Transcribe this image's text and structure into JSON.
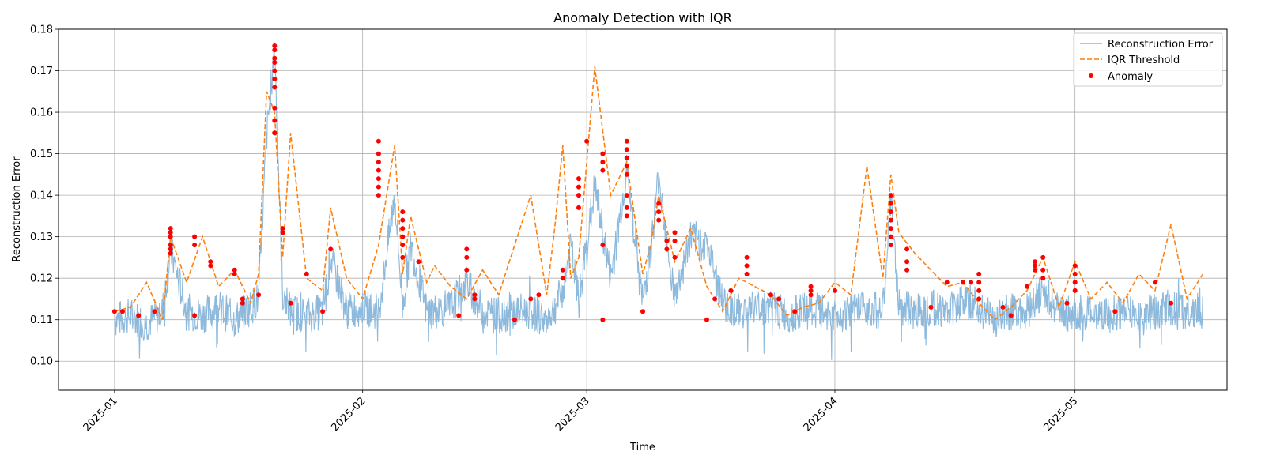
{
  "chart_data": {
    "type": "line",
    "title": "Anomaly Detection with IQR",
    "xlabel": "Time",
    "ylabel": "Reconstruction Error",
    "x_range": [
      "2024-12-25",
      "2025-05-20"
    ],
    "ylim": [
      0.093,
      0.18
    ],
    "yticks": [
      "0.10",
      "0.11",
      "0.12",
      "0.13",
      "0.14",
      "0.15",
      "0.16",
      "0.17",
      "0.18"
    ],
    "xticks": [
      {
        "date": "2025-01-01",
        "label": "2025-01"
      },
      {
        "date": "2025-02-01",
        "label": "2025-02"
      },
      {
        "date": "2025-03-01",
        "label": "2025-03"
      },
      {
        "date": "2025-04-01",
        "label": "2025-04"
      },
      {
        "date": "2025-05-01",
        "label": "2025-05"
      }
    ],
    "grid": true,
    "legend_position": "top-right",
    "series": [
      {
        "name": "Reconstruction Error",
        "style": "solid",
        "color": "#8cb9dc",
        "x": [
          "2025-01-01",
          "2025-01-03",
          "2025-01-05",
          "2025-01-07",
          "2025-01-08",
          "2025-01-10",
          "2025-01-12",
          "2025-01-14",
          "2025-01-16",
          "2025-01-18",
          "2025-01-19",
          "2025-01-20",
          "2025-01-21",
          "2025-01-22",
          "2025-01-23",
          "2025-01-25",
          "2025-01-27",
          "2025-01-28",
          "2025-01-30",
          "2025-02-01",
          "2025-02-03",
          "2025-02-05",
          "2025-02-06",
          "2025-02-07",
          "2025-02-09",
          "2025-02-10",
          "2025-02-12",
          "2025-02-14",
          "2025-02-16",
          "2025-02-18",
          "2025-02-20",
          "2025-02-22",
          "2025-02-24",
          "2025-02-25",
          "2025-02-26",
          "2025-02-27",
          "2025-02-28",
          "2025-03-02",
          "2025-03-04",
          "2025-03-06",
          "2025-03-08",
          "2025-03-09",
          "2025-03-10",
          "2025-03-12",
          "2025-03-14",
          "2025-03-16",
          "2025-03-18",
          "2025-03-20",
          "2025-03-22",
          "2025-03-24",
          "2025-03-26",
          "2025-03-28",
          "2025-03-30",
          "2025-04-01",
          "2025-04-03",
          "2025-04-05",
          "2025-04-07",
          "2025-04-08",
          "2025-04-09",
          "2025-04-11",
          "2025-04-13",
          "2025-04-15",
          "2025-04-17",
          "2025-04-19",
          "2025-04-21",
          "2025-04-23",
          "2025-04-25",
          "2025-04-27",
          "2025-04-29",
          "2025-05-01",
          "2025-05-03",
          "2025-05-05",
          "2025-05-07",
          "2025-05-09",
          "2025-05-11",
          "2025-05-13",
          "2025-05-15",
          "2025-05-17"
        ],
        "y": [
          0.11,
          0.111,
          0.109,
          0.112,
          0.127,
          0.112,
          0.111,
          0.113,
          0.11,
          0.113,
          0.115,
          0.154,
          0.176,
          0.116,
          0.112,
          0.111,
          0.112,
          0.125,
          0.112,
          0.113,
          0.112,
          0.14,
          0.113,
          0.128,
          0.112,
          0.112,
          0.113,
          0.119,
          0.112,
          0.111,
          0.112,
          0.112,
          0.11,
          0.113,
          0.117,
          0.128,
          0.114,
          0.142,
          0.12,
          0.146,
          0.114,
          0.127,
          0.145,
          0.115,
          0.13,
          0.128,
          0.114,
          0.112,
          0.113,
          0.113,
          0.111,
          0.112,
          0.112,
          0.111,
          0.112,
          0.113,
          0.112,
          0.139,
          0.113,
          0.112,
          0.113,
          0.112,
          0.115,
          0.113,
          0.11,
          0.112,
          0.112,
          0.117,
          0.112,
          0.111,
          0.112,
          0.111,
          0.112,
          0.111,
          0.112,
          0.113,
          0.112,
          0.112
        ]
      },
      {
        "name": "IQR Threshold",
        "style": "dashed",
        "color": "#ff7f0e",
        "x": [
          "2025-01-01",
          "2025-01-03",
          "2025-01-05",
          "2025-01-07",
          "2025-01-08",
          "2025-01-10",
          "2025-01-12",
          "2025-01-14",
          "2025-01-16",
          "2025-01-18",
          "2025-01-19",
          "2025-01-20",
          "2025-01-21",
          "2025-01-22",
          "2025-01-23",
          "2025-01-25",
          "2025-01-27",
          "2025-01-28",
          "2025-01-30",
          "2025-02-01",
          "2025-02-03",
          "2025-02-05",
          "2025-02-06",
          "2025-02-07",
          "2025-02-09",
          "2025-02-10",
          "2025-02-12",
          "2025-02-14",
          "2025-02-16",
          "2025-02-18",
          "2025-02-20",
          "2025-02-22",
          "2025-02-24",
          "2025-02-25",
          "2025-02-26",
          "2025-02-27",
          "2025-02-28",
          "2025-03-02",
          "2025-03-04",
          "2025-03-06",
          "2025-03-08",
          "2025-03-09",
          "2025-03-10",
          "2025-03-12",
          "2025-03-14",
          "2025-03-16",
          "2025-03-18",
          "2025-03-20",
          "2025-03-22",
          "2025-03-24",
          "2025-03-26",
          "2025-03-28",
          "2025-03-30",
          "2025-04-01",
          "2025-04-03",
          "2025-04-05",
          "2025-04-07",
          "2025-04-08",
          "2025-04-09",
          "2025-04-11",
          "2025-04-13",
          "2025-04-15",
          "2025-04-17",
          "2025-04-19",
          "2025-04-21",
          "2025-04-23",
          "2025-04-25",
          "2025-04-27",
          "2025-04-29",
          "2025-05-01",
          "2025-05-03",
          "2025-05-05",
          "2025-05-07",
          "2025-05-09",
          "2025-05-11",
          "2025-05-13",
          "2025-05-15",
          "2025-05-17"
        ],
        "y": [
          0.112,
          0.113,
          0.119,
          0.11,
          0.13,
          0.119,
          0.13,
          0.118,
          0.122,
          0.114,
          0.121,
          0.165,
          0.16,
          0.125,
          0.155,
          0.12,
          0.117,
          0.137,
          0.12,
          0.115,
          0.128,
          0.152,
          0.121,
          0.135,
          0.119,
          0.123,
          0.118,
          0.115,
          0.122,
          0.116,
          0.128,
          0.14,
          0.116,
          0.132,
          0.152,
          0.12,
          0.125,
          0.171,
          0.14,
          0.148,
          0.121,
          0.128,
          0.14,
          0.124,
          0.132,
          0.118,
          0.112,
          0.12,
          0.118,
          0.116,
          0.111,
          0.113,
          0.114,
          0.119,
          0.116,
          0.147,
          0.12,
          0.145,
          0.131,
          0.126,
          0.122,
          0.118,
          0.119,
          0.114,
          0.11,
          0.113,
          0.117,
          0.125,
          0.113,
          0.124,
          0.115,
          0.119,
          0.114,
          0.121,
          0.117,
          0.133,
          0.115,
          0.121
        ]
      }
    ],
    "anomalies": {
      "name": "Anomaly",
      "color": "#ff0000",
      "x": [
        "2025-01-01",
        "2025-01-02",
        "2025-01-04",
        "2025-01-06",
        "2025-01-08",
        "2025-01-08",
        "2025-01-08",
        "2025-01-08",
        "2025-01-08",
        "2025-01-08",
        "2025-01-11",
        "2025-01-11",
        "2025-01-11",
        "2025-01-13",
        "2025-01-13",
        "2025-01-16",
        "2025-01-16",
        "2025-01-17",
        "2025-01-17",
        "2025-01-19",
        "2025-01-21",
        "2025-01-21",
        "2025-01-21",
        "2025-01-21",
        "2025-01-21",
        "2025-01-21",
        "2025-01-21",
        "2025-01-21",
        "2025-01-21",
        "2025-01-21",
        "2025-01-21",
        "2025-01-22",
        "2025-01-22",
        "2025-01-23",
        "2025-01-25",
        "2025-01-27",
        "2025-01-28",
        "2025-02-03",
        "2025-02-03",
        "2025-02-03",
        "2025-02-03",
        "2025-02-03",
        "2025-02-03",
        "2025-02-03",
        "2025-02-06",
        "2025-02-06",
        "2025-02-06",
        "2025-02-06",
        "2025-02-06",
        "2025-02-06",
        "2025-02-08",
        "2025-02-13",
        "2025-02-14",
        "2025-02-14",
        "2025-02-14",
        "2025-02-15",
        "2025-02-15",
        "2025-02-20",
        "2025-02-22",
        "2025-02-23",
        "2025-02-26",
        "2025-02-26",
        "2025-02-28",
        "2025-02-28",
        "2025-02-28",
        "2025-02-28",
        "2025-03-01",
        "2025-03-03",
        "2025-03-03",
        "2025-03-03",
        "2025-03-03",
        "2025-03-03",
        "2025-03-06",
        "2025-03-06",
        "2025-03-06",
        "2025-03-06",
        "2025-03-06",
        "2025-03-06",
        "2025-03-06",
        "2025-03-06",
        "2025-03-08",
        "2025-03-10",
        "2025-03-10",
        "2025-03-10",
        "2025-03-11",
        "2025-03-11",
        "2025-03-12",
        "2025-03-12",
        "2025-03-12",
        "2025-03-16",
        "2025-03-17",
        "2025-03-19",
        "2025-03-21",
        "2025-03-21",
        "2025-03-21",
        "2025-03-24",
        "2025-03-25",
        "2025-03-27",
        "2025-03-29",
        "2025-03-29",
        "2025-03-29",
        "2025-04-01",
        "2025-04-08",
        "2025-04-08",
        "2025-04-08",
        "2025-04-08",
        "2025-04-08",
        "2025-04-08",
        "2025-04-08",
        "2025-04-10",
        "2025-04-10",
        "2025-04-10",
        "2025-04-13",
        "2025-04-15",
        "2025-04-17",
        "2025-04-18",
        "2025-04-19",
        "2025-04-19",
        "2025-04-19",
        "2025-04-19",
        "2025-04-22",
        "2025-04-23",
        "2025-04-25",
        "2025-04-26",
        "2025-04-26",
        "2025-04-26",
        "2025-04-27",
        "2025-04-27",
        "2025-04-27",
        "2025-04-30",
        "2025-05-01",
        "2025-05-01",
        "2025-05-01",
        "2025-05-01",
        "2025-05-06",
        "2025-05-11",
        "2025-05-13"
      ],
      "y": [
        0.112,
        0.112,
        0.111,
        0.112,
        0.132,
        0.13,
        0.128,
        0.126,
        0.131,
        0.127,
        0.13,
        0.128,
        0.111,
        0.124,
        0.123,
        0.122,
        0.121,
        0.115,
        0.114,
        0.116,
        0.176,
        0.175,
        0.173,
        0.172,
        0.17,
        0.168,
        0.166,
        0.161,
        0.158,
        0.155,
        0.155,
        0.132,
        0.131,
        0.114,
        0.121,
        0.112,
        0.127,
        0.153,
        0.15,
        0.148,
        0.146,
        0.144,
        0.142,
        0.14,
        0.136,
        0.134,
        0.132,
        0.13,
        0.128,
        0.125,
        0.124,
        0.111,
        0.127,
        0.125,
        0.122,
        0.116,
        0.115,
        0.11,
        0.115,
        0.116,
        0.122,
        0.12,
        0.144,
        0.142,
        0.14,
        0.137,
        0.153,
        0.15,
        0.148,
        0.146,
        0.128,
        0.11,
        0.153,
        0.151,
        0.149,
        0.147,
        0.145,
        0.14,
        0.137,
        0.135,
        0.112,
        0.138,
        0.136,
        0.134,
        0.129,
        0.127,
        0.131,
        0.129,
        0.125,
        0.11,
        0.115,
        0.117,
        0.125,
        0.123,
        0.121,
        0.116,
        0.115,
        0.112,
        0.118,
        0.117,
        0.116,
        0.117,
        0.14,
        0.138,
        0.136,
        0.134,
        0.132,
        0.13,
        0.128,
        0.127,
        0.124,
        0.122,
        0.113,
        0.119,
        0.119,
        0.119,
        0.121,
        0.119,
        0.117,
        0.115,
        0.113,
        0.111,
        0.118,
        0.124,
        0.123,
        0.122,
        0.125,
        0.122,
        0.12,
        0.114,
        0.123,
        0.121,
        0.119,
        0.117,
        0.112,
        0.119,
        0.114
      ]
    }
  }
}
